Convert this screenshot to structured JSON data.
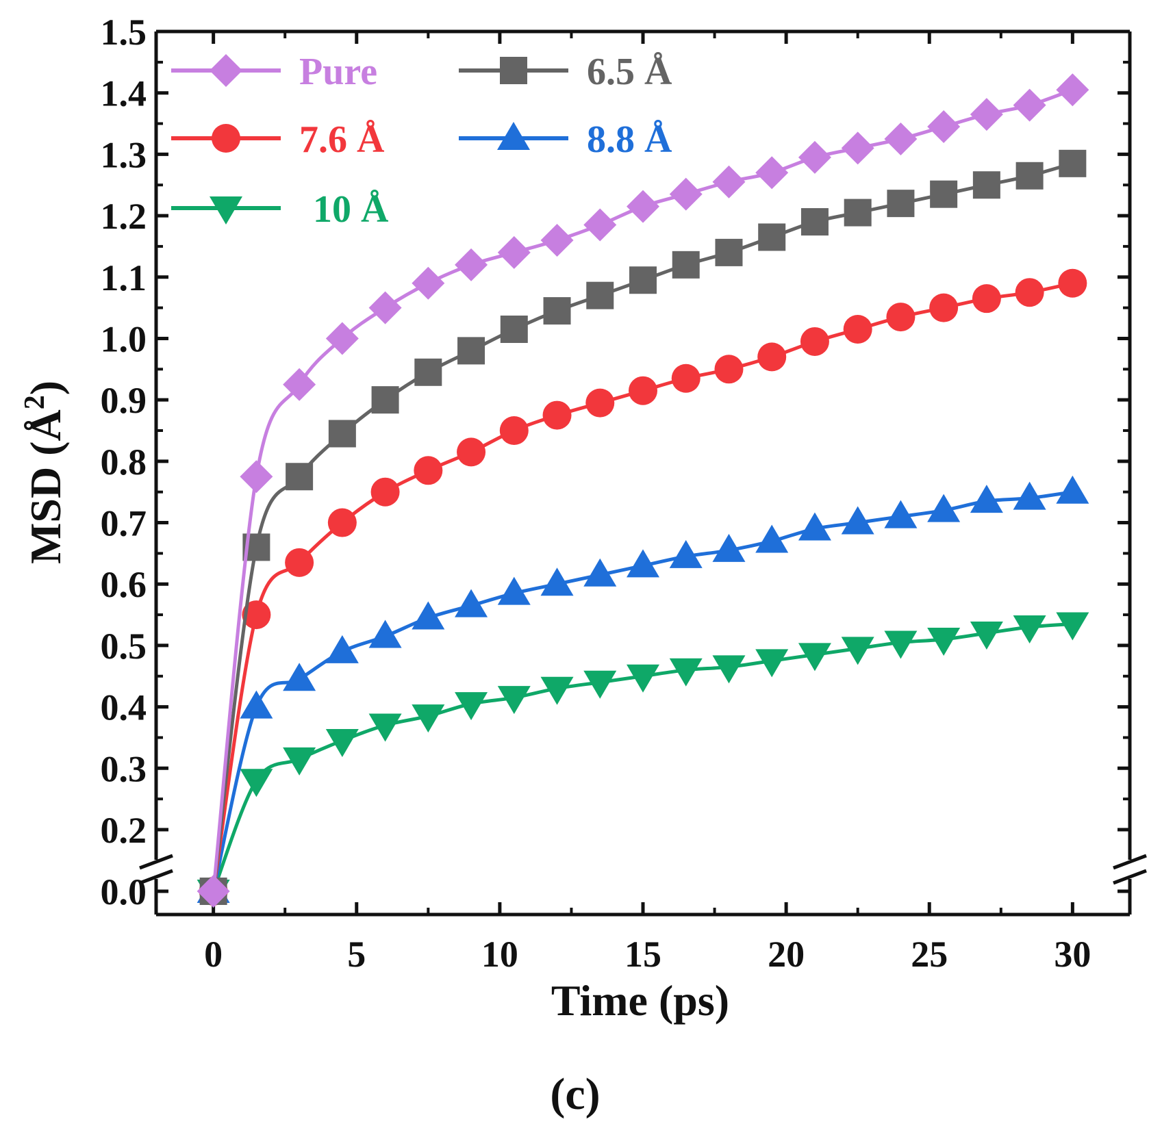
{
  "chart_data": {
    "type": "line",
    "caption": "(c)",
    "xlabel": "Time (ps)",
    "ylabel": "MSD (Å²)",
    "ylabel_parts": {
      "main": "MSD (Å",
      "sup": "2",
      "close": ")"
    },
    "xlim": [
      -2,
      32
    ],
    "ylim": [
      -0.08,
      1.5
    ],
    "y_axis_break": {
      "from": 0.03,
      "to": 0.15
    },
    "x_ticks": [
      0,
      5,
      10,
      15,
      20,
      25,
      30
    ],
    "x_tick_labels": [
      "0",
      "5",
      "10",
      "15",
      "20",
      "25",
      "30"
    ],
    "y_ticks": [
      0.0,
      0.2,
      0.3,
      0.4,
      0.5,
      0.6,
      0.7,
      0.8,
      0.9,
      1.0,
      1.1,
      1.2,
      1.3,
      1.4,
      1.5
    ],
    "y_tick_labels": [
      "0.0",
      "0.2",
      "0.3",
      "0.4",
      "0.5",
      "0.6",
      "0.7",
      "0.8",
      "0.9",
      "1.0",
      "1.1",
      "1.2",
      "1.3",
      "1.4",
      "1.5"
    ],
    "legend_placement": "top-left",
    "x": [
      0,
      1.5,
      3,
      4.5,
      6,
      7.5,
      9,
      10.5,
      12,
      13.5,
      15,
      16.5,
      18,
      19.5,
      21,
      22.5,
      24,
      25.5,
      27,
      28.5,
      30
    ],
    "series": [
      {
        "name": "Pure",
        "color": "#c77fe0",
        "marker": "diamond",
        "values": [
          0.0,
          0.775,
          0.925,
          1.0,
          1.05,
          1.09,
          1.12,
          1.14,
          1.16,
          1.185,
          1.215,
          1.235,
          1.255,
          1.27,
          1.295,
          1.31,
          1.325,
          1.345,
          1.365,
          1.38,
          1.405
        ]
      },
      {
        "name": "6.5 Å",
        "color": "#646464",
        "marker": "square",
        "values": [
          0.0,
          0.66,
          0.775,
          0.845,
          0.9,
          0.945,
          0.98,
          1.015,
          1.045,
          1.07,
          1.095,
          1.12,
          1.14,
          1.165,
          1.19,
          1.205,
          1.22,
          1.235,
          1.25,
          1.265,
          1.285
        ]
      },
      {
        "name": "7.6 Å",
        "color": "#f2373c",
        "marker": "circle",
        "values": [
          0.0,
          0.55,
          0.635,
          0.7,
          0.75,
          0.785,
          0.815,
          0.85,
          0.875,
          0.895,
          0.915,
          0.935,
          0.95,
          0.97,
          0.995,
          1.015,
          1.035,
          1.05,
          1.065,
          1.075,
          1.09
        ]
      },
      {
        "name": "8.8 Å",
        "color": "#1f6fd9",
        "marker": "triangle-up",
        "values": [
          0.0,
          0.4,
          0.445,
          0.49,
          0.515,
          0.545,
          0.565,
          0.585,
          0.6,
          0.615,
          0.63,
          0.645,
          0.655,
          0.67,
          0.69,
          0.7,
          0.71,
          0.72,
          0.735,
          0.74,
          0.75
        ]
      },
      {
        "name": "10 Å",
        "color": "#0fa868",
        "marker": "triangle-down",
        "values": [
          0.0,
          0.28,
          0.315,
          0.345,
          0.37,
          0.385,
          0.405,
          0.415,
          0.43,
          0.44,
          0.45,
          0.46,
          0.465,
          0.475,
          0.485,
          0.495,
          0.505,
          0.51,
          0.52,
          0.53,
          0.535
        ]
      }
    ]
  }
}
